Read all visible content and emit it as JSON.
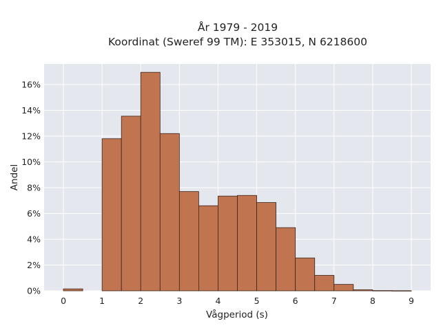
{
  "chart_data": {
    "type": "bar",
    "title": "År 1979 - 2019",
    "subtitle": "Koordinat (Sweref 99 TM): E 353015, N 6218600",
    "xlabel": "Vågperiod (s)",
    "ylabel": "Andel",
    "xlim": [
      -0.5,
      9.5
    ],
    "ylim": [
      0,
      17.6
    ],
    "x_ticks": [
      0,
      1,
      2,
      3,
      4,
      5,
      6,
      7,
      8,
      9
    ],
    "y_ticks": [
      0,
      2,
      4,
      6,
      8,
      10,
      12,
      14,
      16
    ],
    "y_tick_labels": [
      "0%",
      "2%",
      "4%",
      "6%",
      "8%",
      "10%",
      "12%",
      "14%",
      "16%"
    ],
    "bin_width": 0.5,
    "bins": [
      {
        "start": 0.0,
        "value": 0.15
      },
      {
        "start": 0.5,
        "value": 0.0
      },
      {
        "start": 1.0,
        "value": 11.8
      },
      {
        "start": 1.5,
        "value": 13.55
      },
      {
        "start": 2.0,
        "value": 16.95
      },
      {
        "start": 2.5,
        "value": 12.2
      },
      {
        "start": 3.0,
        "value": 7.7
      },
      {
        "start": 3.5,
        "value": 6.6
      },
      {
        "start": 4.0,
        "value": 7.35
      },
      {
        "start": 4.5,
        "value": 7.4
      },
      {
        "start": 5.0,
        "value": 6.85
      },
      {
        "start": 5.5,
        "value": 4.9
      },
      {
        "start": 6.0,
        "value": 2.55
      },
      {
        "start": 6.5,
        "value": 1.2
      },
      {
        "start": 7.0,
        "value": 0.5
      },
      {
        "start": 7.5,
        "value": 0.08
      },
      {
        "start": 8.0,
        "value": 0.02
      },
      {
        "start": 8.5,
        "value": 0.01
      }
    ],
    "grid": true,
    "colors": {
      "bar_fill": "#c07550",
      "bar_edge": "#3a2418",
      "plot_background": "#e5e7ef",
      "grid": "#ffffff"
    }
  }
}
